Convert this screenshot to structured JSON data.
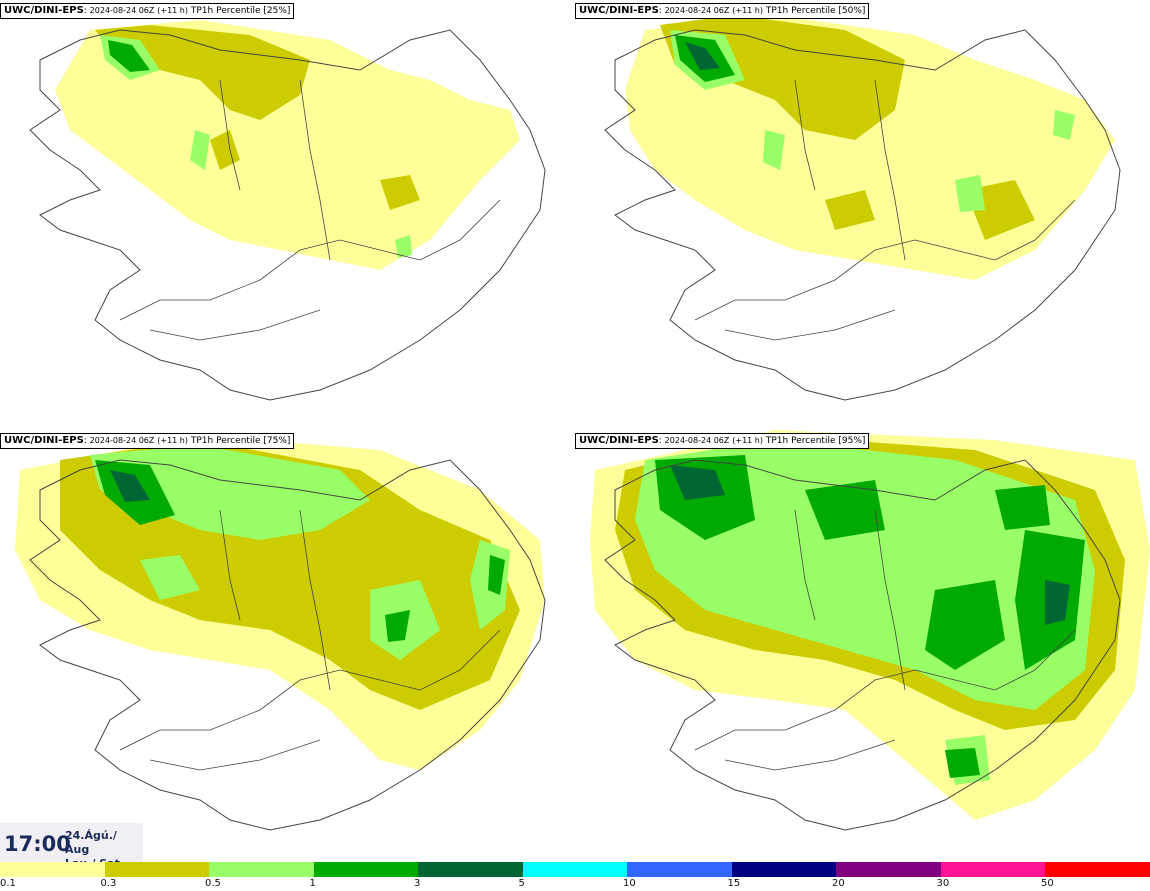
{
  "panels": [
    {
      "model": "UWC/DINI-EPS",
      "run": "2024-08-24 06Z",
      "lead": "(+11 h)",
      "field": "TP1h Percentile",
      "percentile": "[25%]"
    },
    {
      "model": "UWC/DINI-EPS",
      "run": "2024-08-24 06Z",
      "lead": "(+11 h)",
      "field": "TP1h Percentile",
      "percentile": "[50%]"
    },
    {
      "model": "UWC/DINI-EPS",
      "run": "2024-08-24 06Z",
      "lead": "(+11 h)",
      "field": "TP1h Percentile",
      "percentile": "[75%]"
    },
    {
      "model": "UWC/DINI-EPS",
      "run": "2024-08-24 06Z",
      "lead": "(+11 h)",
      "field": "TP1h Percentile",
      "percentile": "[95%]"
    }
  ],
  "valid_time": {
    "time": "17:00",
    "date_line1": "24.Ágú./ Aug",
    "date_line2": "Lau./ Sat"
  },
  "legend": {
    "labels": [
      "0.1",
      "0.3",
      "0.5",
      "1",
      "3",
      "5",
      "10",
      "15",
      "20",
      "30",
      "50"
    ],
    "colors": [
      "#ffff99",
      "#cccc00",
      "#99ff66",
      "#00aa00",
      "#006633",
      "#00ffff",
      "#3366ff",
      "#000080",
      "#800080",
      "#ff1493",
      "#ff0000"
    ]
  },
  "colors": {
    "land_outline": "#444444",
    "precip_01": "#ffff99",
    "precip_03": "#cccc00",
    "precip_05": "#99ff66",
    "precip_1": "#00aa00",
    "precip_3": "#006633"
  }
}
